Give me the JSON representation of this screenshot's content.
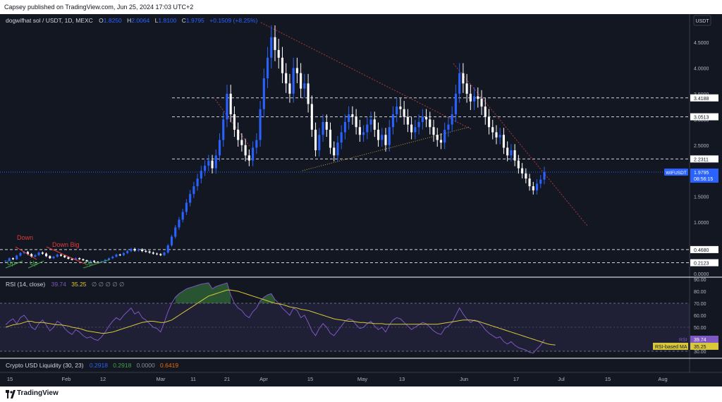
{
  "header": {
    "text": "Capsey published on TradingView.com, Jun 25, 2024 17:03 UTC+2"
  },
  "legend": {
    "symbol": "dogwifhat sol / USDT, 1D, MEXC",
    "o_label": "O",
    "o": "1.8250",
    "h_label": "H",
    "h": "2.0064",
    "l_label": "L",
    "l": "1.8100",
    "c_label": "C",
    "c": "1.9795",
    "change": "+0.1509 (+8.25%)"
  },
  "price_axis": {
    "currency": "USDT"
  },
  "last_price": {
    "ticker": "WIFUSDT",
    "price": "1.9795",
    "countdown": "08:56:15"
  },
  "level_labels": [
    "3.4188",
    "3.0513",
    "2.2311",
    "0.4680",
    "0.2123"
  ],
  "annotations": {
    "down": "Down",
    "down_big": "Down Big",
    "up": "Up"
  },
  "rsi": {
    "title": "RSI (14, close)",
    "value": "39.74",
    "ma_value": "35.25",
    "extra": "∅ ∅ ∅ ∅ ∅",
    "label_rsi": "RSI",
    "label_ma": "RSI-based MA"
  },
  "liquidity": {
    "title": "Crypto USD Liquidity (30, 23)",
    "v1": "0.2918",
    "v2": "0.2918",
    "v3": "0.0000",
    "v4": "0.6419"
  },
  "footer": {
    "brand": "TradingView"
  },
  "colors": {
    "up": "#2962ff",
    "down": "#ffffff",
    "rsi": "#7e57c2",
    "rsi_ma": "#d8c83a",
    "accent": "#2962ff"
  },
  "chart_data": [
    {
      "type": "candlestick",
      "title": "dogwifhat sol / USDT, 1D, MEXC",
      "ylim": [
        0,
        4.9
      ],
      "y_ticks": [
        0.0,
        0.5,
        1.0,
        1.5,
        2.0,
        2.5,
        3.0,
        3.5,
        4.0,
        4.5
      ],
      "x_ticks": [
        "15",
        "Feb",
        "12",
        "Mar",
        "11",
        "21",
        "Apr",
        "15",
        "May",
        "13",
        "Jun",
        "17",
        "Jul",
        "15",
        "Aug"
      ],
      "horizontal_levels": [
        3.4188,
        3.0513,
        2.2311,
        0.468,
        0.2123
      ],
      "last_price": 1.9795,
      "close": [
        0.25,
        0.3,
        0.28,
        0.35,
        0.4,
        0.42,
        0.38,
        0.33,
        0.36,
        0.41,
        0.39,
        0.34,
        0.3,
        0.33,
        0.37,
        0.35,
        0.32,
        0.29,
        0.27,
        0.3,
        0.28,
        0.26,
        0.24,
        0.25,
        0.23,
        0.22,
        0.24,
        0.27,
        0.3,
        0.33,
        0.37,
        0.36,
        0.4,
        0.44,
        0.48,
        0.45,
        0.47,
        0.44,
        0.43,
        0.41,
        0.39,
        0.38,
        0.36,
        0.41,
        0.55,
        0.72,
        0.9,
        1.05,
        1.2,
        1.38,
        1.55,
        1.7,
        1.85,
        2.0,
        2.1,
        2.2,
        2.05,
        2.3,
        2.6,
        3.0,
        3.5,
        3.1,
        2.8,
        2.6,
        2.5,
        2.3,
        2.2,
        2.45,
        2.6,
        3.2,
        3.8,
        4.2,
        4.6,
        4.35,
        4.2,
        3.9,
        3.7,
        3.5,
        4.0,
        3.9,
        3.6,
        3.7,
        3.3,
        2.8,
        2.4,
        2.7,
        2.95,
        2.8,
        2.45,
        2.3,
        2.55,
        2.75,
        2.95,
        3.1,
        3.05,
        2.85,
        2.7,
        2.75,
        2.9,
        3.0,
        2.8,
        2.6,
        2.7,
        2.5,
        2.85,
        3.1,
        3.25,
        3.2,
        3.05,
        2.9,
        2.75,
        2.85,
        2.95,
        3.05,
        3.0,
        2.85,
        2.7,
        2.6,
        2.55,
        2.8,
        2.9,
        3.1,
        3.5,
        3.9,
        3.7,
        3.5,
        3.35,
        3.45,
        3.4,
        3.25,
        3.05,
        2.85,
        2.75,
        2.65,
        2.7,
        2.45,
        2.3,
        2.4,
        2.2,
        2.05,
        1.95,
        1.85,
        1.7,
        1.62,
        1.75,
        1.83,
        1.98
      ]
    },
    {
      "type": "line",
      "title": "RSI (14, close)",
      "ylim": [
        24,
        94
      ],
      "y_ticks": [
        30,
        40,
        50,
        60,
        70,
        80,
        90
      ],
      "band": [
        30,
        70
      ],
      "series": [
        {
          "name": "RSI",
          "values": [
            52,
            55,
            57,
            53,
            58,
            60,
            56,
            50,
            48,
            53,
            56,
            52,
            47,
            50,
            55,
            53,
            49,
            46,
            44,
            48,
            46,
            43,
            41,
            42,
            40,
            39,
            42,
            46,
            51,
            55,
            58,
            56,
            60,
            63,
            66,
            61,
            63,
            58,
            56,
            53,
            50,
            49,
            46,
            54,
            63,
            70,
            75,
            78,
            80,
            82,
            83,
            84,
            85,
            86,
            86.5,
            87,
            82,
            84,
            85,
            86,
            87,
            77,
            70,
            66,
            64,
            60,
            58,
            63,
            66,
            72,
            75,
            77,
            78,
            73,
            70,
            66,
            63,
            60,
            66,
            64,
            58,
            60,
            54,
            47,
            43,
            49,
            53,
            50,
            45,
            43,
            47,
            51,
            55,
            57,
            56,
            52,
            49,
            50,
            53,
            55,
            51,
            48,
            50,
            46,
            52,
            56,
            58,
            57,
            54,
            51,
            48,
            50,
            52,
            54,
            53,
            50,
            47,
            45,
            44,
            49,
            51,
            54,
            60,
            66,
            61,
            57,
            54,
            56,
            55,
            52,
            48,
            45,
            43,
            41,
            42,
            38,
            36,
            38,
            35,
            33,
            32,
            31,
            29,
            28.5,
            32,
            35,
            39.74
          ]
        },
        {
          "name": "RSI-based MA",
          "values": [
            50,
            51,
            52,
            52.5,
            53,
            54,
            55,
            55,
            54,
            54,
            54,
            53.5,
            53,
            52.5,
            52,
            52,
            51.5,
            51,
            50,
            49.5,
            49,
            48,
            47,
            46.5,
            46,
            45.5,
            45,
            45,
            45.5,
            46,
            47,
            48,
            49,
            50,
            51,
            52,
            53,
            54,
            54.5,
            55,
            55,
            54.5,
            54,
            54,
            55,
            56,
            58,
            60,
            62,
            64,
            66,
            68,
            70,
            72,
            74,
            76,
            77,
            78,
            79,
            80,
            81,
            81,
            80.5,
            80,
            79,
            78,
            77,
            76,
            75,
            74,
            73,
            72,
            71,
            70,
            69.5,
            69,
            68,
            67,
            66.5,
            66,
            65,
            64.5,
            64,
            63,
            62,
            61,
            60,
            59,
            58,
            57,
            56.5,
            56,
            55.5,
            55,
            55,
            54.5,
            54,
            54,
            53.5,
            53.5,
            53,
            53,
            53,
            52.5,
            52.5,
            52.5,
            52.5,
            52.5,
            52.5,
            52.5,
            52.5,
            52.5,
            52.5,
            52.5,
            52.5,
            52.5,
            52.5,
            52.5,
            53,
            53.5,
            54,
            54.5,
            55,
            55.5,
            56,
            56,
            56,
            55.5,
            55,
            54,
            53,
            52,
            51,
            50,
            49,
            48,
            47,
            46,
            45,
            44,
            43,
            42,
            41,
            40,
            39,
            38,
            37,
            36,
            35.5,
            35.25
          ]
        }
      ]
    }
  ]
}
